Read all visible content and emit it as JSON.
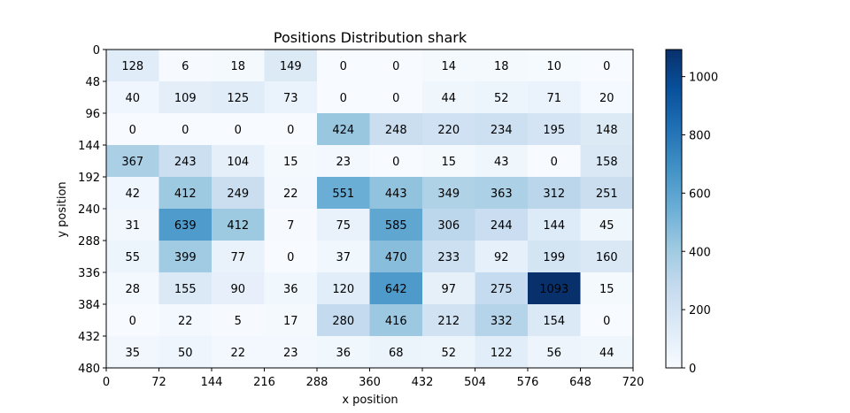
{
  "chart_data": {
    "type": "heatmap",
    "title": "Positions Distribution shark",
    "xlabel": "x position",
    "ylabel": "y position",
    "x_ticks": [
      0,
      72,
      144,
      216,
      288,
      360,
      432,
      504,
      576,
      648,
      720
    ],
    "y_ticks": [
      0,
      48,
      96,
      144,
      192,
      240,
      288,
      336,
      384,
      432,
      480
    ],
    "xlim": [
      0,
      720
    ],
    "ylim": [
      0,
      480
    ],
    "y_axis_inverted": true,
    "colormap": "Blues",
    "colormap_stops": [
      "#f7fbff",
      "#deebf7",
      "#c6dbef",
      "#9ecae1",
      "#6baed6",
      "#4292c6",
      "#2171b5",
      "#08519c",
      "#08306b"
    ],
    "color_range": [
      0,
      1093
    ],
    "colorbar_ticks": [
      0,
      200,
      400,
      600,
      800,
      1000
    ],
    "cells": [
      [
        128,
        6,
        18,
        149,
        0,
        0,
        14,
        18,
        10,
        0
      ],
      [
        40,
        109,
        125,
        73,
        0,
        0,
        44,
        52,
        71,
        20
      ],
      [
        0,
        0,
        0,
        0,
        424,
        248,
        220,
        234,
        195,
        148
      ],
      [
        367,
        243,
        104,
        15,
        23,
        0,
        15,
        43,
        0,
        158
      ],
      [
        42,
        412,
        249,
        22,
        551,
        443,
        349,
        363,
        312,
        251
      ],
      [
        31,
        639,
        412,
        7,
        75,
        585,
        306,
        244,
        144,
        45
      ],
      [
        55,
        399,
        77,
        0,
        37,
        470,
        233,
        92,
        199,
        160
      ],
      [
        28,
        155,
        90,
        36,
        120,
        642,
        97,
        275,
        1093,
        15
      ],
      [
        0,
        22,
        5,
        17,
        280,
        416,
        212,
        332,
        154,
        0
      ],
      [
        35,
        50,
        22,
        23,
        36,
        68,
        52,
        122,
        56,
        44
      ]
    ]
  }
}
